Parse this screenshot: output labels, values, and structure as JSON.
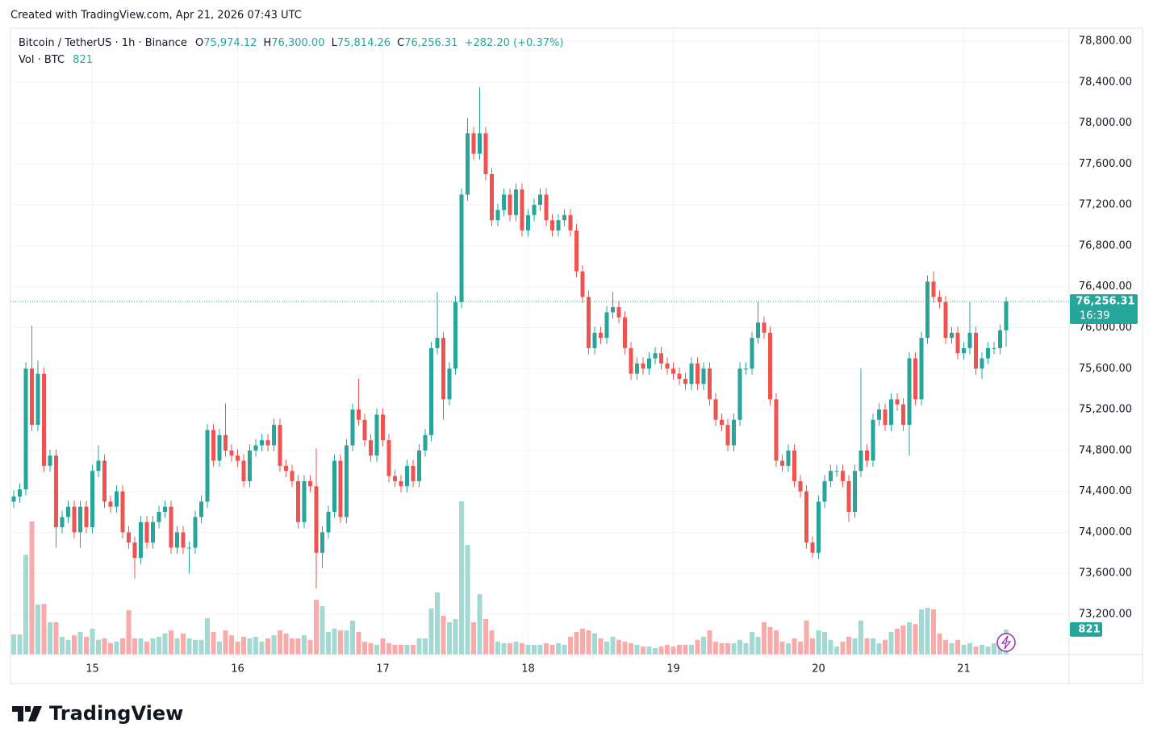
{
  "created": "Created with TradingView.com, Apr 21, 2026 07:43 UTC",
  "footer": "TradingView",
  "chart_data": {
    "type": "candlestick",
    "legend": {
      "symbol": "Bitcoin / TetherUS · 1h · Binance",
      "o": "O",
      "open": "75,974.12",
      "h": "H",
      "high": "76,300.00",
      "l": "L",
      "low": "75,814.26",
      "c": "C",
      "close": "76,256.31",
      "change": "+282.20 (+0.37%)"
    },
    "categories": [
      null,
      null,
      null,
      null,
      null,
      null,
      null,
      null,
      null,
      null,
      null,
      null,
      null,
      "15",
      null,
      null,
      null,
      null,
      null,
      null,
      null,
      null,
      null,
      null,
      null,
      null,
      null,
      null,
      null,
      null,
      null,
      null,
      null,
      null,
      null,
      null,
      null,
      "16",
      null,
      null,
      null,
      null,
      null,
      null,
      null,
      null,
      null,
      null,
      null,
      null,
      null,
      null,
      null,
      null,
      null,
      null,
      null,
      null,
      null,
      null,
      null,
      "17",
      null,
      null,
      null,
      null,
      null,
      null,
      null,
      null,
      null,
      null,
      null,
      null,
      null,
      null,
      null,
      null,
      null,
      null,
      null,
      null,
      null,
      null,
      null,
      "18",
      null,
      null,
      null,
      null,
      null,
      null,
      null,
      null,
      null,
      null,
      null,
      null,
      null,
      null,
      null,
      null,
      null,
      null,
      null,
      null,
      null,
      null,
      null,
      "19",
      null,
      null,
      null,
      null,
      null,
      null,
      null,
      null,
      null,
      null,
      null,
      null,
      null,
      null,
      null,
      null,
      null,
      null,
      null,
      null,
      null,
      null,
      null,
      "20",
      null,
      null,
      null,
      null,
      null,
      null,
      null,
      null,
      null,
      null,
      null,
      null,
      null,
      null,
      null,
      null,
      null,
      null,
      null,
      null,
      null,
      null,
      null,
      "21",
      null,
      null,
      null,
      null,
      null,
      null,
      null
    ],
    "series": [
      {
        "up_color": "#26a69a",
        "down_color": "#ef5350",
        "open": [
          74300,
          74350,
          74420,
          75600,
          75050,
          75550,
          74650,
          74750,
          74050,
          74150,
          74250,
          74000,
          74250,
          74050,
          74600,
          74700,
          74300,
          74250,
          74400,
          74000,
          73900,
          73750,
          74100,
          73900,
          74100,
          74200,
          74250,
          73850,
          74000,
          73850,
          73850,
          74150,
          74300,
          75000,
          74700,
          74950,
          74800,
          74750,
          74700,
          74500,
          74800,
          74850,
          74900,
          74850,
          75050,
          74650,
          74600,
          74500,
          74100,
          74500,
          74450,
          73800,
          74000,
          74200,
          74700,
          74150,
          74850,
          75200,
          75100,
          74900,
          74750,
          75150,
          74900,
          74550,
          74500,
          74450,
          74650,
          74500,
          74800,
          74950,
          75800,
          75900,
          75300,
          75600,
          76250,
          77300,
          77900,
          77700,
          77900,
          77500,
          77050,
          77150,
          77300,
          77100,
          77350,
          76950,
          77100,
          77200,
          77300,
          77050,
          76950,
          77050,
          77100,
          76950,
          76550,
          76300,
          75800,
          75950,
          75900,
          76150,
          76200,
          76100,
          75800,
          75550,
          75650,
          75600,
          75700,
          75750,
          75650,
          75600,
          75550,
          75500,
          75450,
          75650,
          75450,
          75600,
          75300,
          75100,
          75050,
          74850,
          75100,
          75600,
          75600,
          75900,
          76050,
          75950,
          75300,
          74700,
          74650,
          74800,
          74500,
          74400,
          73900,
          73800,
          74300,
          74500,
          74600,
          74600,
          74500,
          74200,
          74600,
          74800,
          74700,
          75100,
          75200,
          75050,
          75300,
          75250,
          75050,
          75700,
          75300,
          75900,
          76450,
          76300,
          76250,
          75900,
          75950,
          75750,
          75800,
          75950,
          75600,
          75700,
          75800,
          75800,
          75974.12
        ],
        "high": [
          74410,
          74480,
          75660,
          76020,
          75680,
          75610,
          74810,
          74810,
          74210,
          74310,
          74310,
          74310,
          74310,
          74660,
          74850,
          74760,
          74360,
          74460,
          74460,
          74060,
          73960,
          74160,
          74160,
          74160,
          74260,
          74310,
          74310,
          74060,
          74060,
          73910,
          74210,
          74360,
          75060,
          75060,
          75010,
          75260,
          74860,
          74810,
          74760,
          74860,
          74910,
          74960,
          74960,
          75110,
          75110,
          74710,
          74660,
          74560,
          74560,
          74560,
          74820,
          74060,
          74260,
          74760,
          74760,
          74910,
          75260,
          75500,
          75160,
          74960,
          75210,
          75210,
          74960,
          74610,
          74560,
          74710,
          74710,
          74860,
          75010,
          75860,
          76350,
          75960,
          75660,
          76310,
          77360,
          78050,
          77960,
          78350,
          77960,
          77560,
          77210,
          77360,
          77360,
          77410,
          77410,
          77160,
          77260,
          77360,
          77360,
          77110,
          77110,
          77160,
          77160,
          77010,
          76610,
          76360,
          76010,
          76010,
          76210,
          76350,
          76260,
          76160,
          75860,
          75710,
          75710,
          75760,
          75810,
          75810,
          75710,
          75660,
          75610,
          75560,
          75710,
          75710,
          75660,
          75660,
          75360,
          75160,
          75110,
          75160,
          75660,
          75660,
          75960,
          76250,
          76110,
          76010,
          75360,
          74760,
          74860,
          74860,
          74560,
          74460,
          73960,
          74360,
          74560,
          74660,
          74660,
          74660,
          74560,
          74660,
          75600,
          74860,
          75160,
          75260,
          75260,
          75360,
          75360,
          75310,
          75760,
          75760,
          75960,
          76510,
          76550,
          76360,
          76310,
          76010,
          76010,
          75860,
          76250,
          76010,
          75760,
          75860,
          75860,
          76030,
          76300
        ],
        "low": [
          74240,
          74290,
          74360,
          74990,
          74990,
          74590,
          74590,
          73850,
          73990,
          74090,
          73940,
          73850,
          73990,
          73990,
          74540,
          74240,
          74190,
          74190,
          73940,
          73840,
          73550,
          73690,
          73840,
          73840,
          74040,
          74140,
          73790,
          73790,
          73790,
          73600,
          73790,
          74090,
          74240,
          74640,
          74640,
          74740,
          74690,
          74640,
          74440,
          74440,
          74740,
          74790,
          74790,
          74790,
          74590,
          74540,
          74440,
          74040,
          74040,
          74390,
          73450,
          73650,
          73940,
          74140,
          74090,
          74090,
          74790,
          75040,
          74840,
          74690,
          74690,
          74840,
          74490,
          74440,
          74390,
          74390,
          74440,
          74440,
          74740,
          74890,
          75740,
          75100,
          75240,
          75540,
          76190,
          77240,
          77640,
          77640,
          77440,
          76990,
          76990,
          77090,
          77040,
          77040,
          76890,
          76890,
          77040,
          77140,
          76990,
          76890,
          76890,
          76990,
          76890,
          76490,
          76240,
          75740,
          75740,
          75840,
          75840,
          76090,
          76040,
          75740,
          75490,
          75490,
          75540,
          75540,
          75640,
          75590,
          75540,
          75490,
          75440,
          75390,
          75390,
          75390,
          75390,
          75240,
          75040,
          74990,
          74790,
          74790,
          75040,
          75540,
          75540,
          75840,
          75890,
          75240,
          74640,
          74590,
          74590,
          74440,
          74340,
          73840,
          73750,
          73740,
          74240,
          74440,
          74540,
          74440,
          74100,
          74140,
          74540,
          74640,
          74640,
          75040,
          74990,
          74990,
          75190,
          74990,
          74750,
          75240,
          75240,
          75840,
          76240,
          76190,
          75840,
          75840,
          75690,
          75690,
          75740,
          75540,
          75500,
          75640,
          75740,
          75740,
          75814.26
        ],
        "close": [
          74350,
          74420,
          75600,
          75050,
          75550,
          74650,
          74750,
          74050,
          74150,
          74250,
          74000,
          74250,
          74050,
          74600,
          74700,
          74300,
          74250,
          74400,
          74000,
          73900,
          73750,
          74100,
          73900,
          74100,
          74200,
          74250,
          73850,
          74000,
          73850,
          73850,
          74150,
          74300,
          75000,
          74700,
          74950,
          74800,
          74750,
          74700,
          74500,
          74800,
          74850,
          74900,
          74850,
          75050,
          74650,
          74600,
          74500,
          74100,
          74500,
          74450,
          73800,
          74000,
          74200,
          74700,
          74150,
          74850,
          75200,
          75100,
          74900,
          74750,
          75150,
          74900,
          74550,
          74500,
          74450,
          74650,
          74500,
          74800,
          74950,
          75800,
          75900,
          75300,
          75600,
          76250,
          77300,
          77900,
          77700,
          77900,
          77500,
          77050,
          77150,
          77300,
          77100,
          77350,
          76950,
          77100,
          77200,
          77300,
          77050,
          76950,
          77050,
          77100,
          76950,
          76550,
          76300,
          75800,
          75950,
          75900,
          76150,
          76200,
          76100,
          75800,
          75550,
          75650,
          75600,
          75700,
          75750,
          75650,
          75600,
          75550,
          75500,
          75450,
          75650,
          75450,
          75600,
          75300,
          75100,
          75050,
          74850,
          75100,
          75600,
          75600,
          75900,
          76050,
          75950,
          75300,
          74700,
          74650,
          74800,
          74500,
          74400,
          73900,
          73800,
          74300,
          74500,
          74600,
          74600,
          74500,
          74200,
          74600,
          74800,
          74700,
          75100,
          75200,
          75050,
          75300,
          75250,
          75050,
          75700,
          75300,
          75900,
          76450,
          76300,
          76250,
          75900,
          75950,
          75750,
          75800,
          75950,
          75600,
          75700,
          75800,
          75800,
          75974.12,
          76256.31
        ]
      }
    ],
    "countdown": "16:39",
    "volume": {
      "name": "Vol · BTC",
      "value_label": "821",
      "up_color": "#a3d9d3",
      "down_color": "#f8abaa",
      "ylim": [
        0,
        5600
      ],
      "values": [
        660,
        660,
        3270,
        4360,
        1640,
        1660,
        1060,
        1060,
        580,
        480,
        630,
        740,
        580,
        850,
        480,
        530,
        370,
        420,
        530,
        1450,
        530,
        530,
        420,
        530,
        580,
        690,
        790,
        530,
        690,
        530,
        480,
        480,
        1190,
        740,
        420,
        790,
        630,
        420,
        580,
        530,
        580,
        420,
        530,
        630,
        790,
        690,
        530,
        530,
        630,
        480,
        1800,
        1580,
        740,
        850,
        790,
        790,
        1110,
        740,
        420,
        370,
        320,
        530,
        370,
        320,
        320,
        320,
        320,
        530,
        530,
        1510,
        2040,
        1270,
        1060,
        1160,
        5020,
        3590,
        1060,
        1980,
        1160,
        790,
        420,
        370,
        370,
        420,
        370,
        320,
        320,
        320,
        370,
        320,
        370,
        320,
        580,
        740,
        850,
        790,
        690,
        530,
        420,
        580,
        480,
        420,
        370,
        320,
        260,
        260,
        210,
        260,
        320,
        260,
        320,
        320,
        320,
        480,
        580,
        790,
        420,
        370,
        370,
        370,
        480,
        370,
        740,
        580,
        1060,
        900,
        790,
        420,
        370,
        530,
        420,
        1110,
        530,
        790,
        740,
        480,
        260,
        420,
        580,
        530,
        1110,
        530,
        530,
        370,
        480,
        740,
        850,
        950,
        1060,
        1000,
        1480,
        1530,
        1480,
        690,
        480,
        370,
        480,
        320,
        370,
        260,
        320,
        260,
        370,
        260,
        821
      ]
    },
    "ylim": [
      72806,
      78926
    ],
    "yticks": [
      {
        "value": 73200,
        "label": "73,200.00"
      },
      {
        "value": 73600,
        "label": "73,600.00"
      },
      {
        "value": 74000,
        "label": "74,000.00"
      },
      {
        "value": 74400,
        "label": "74,400.00"
      },
      {
        "value": 74800,
        "label": "74,800.00"
      },
      {
        "value": 75200,
        "label": "75,200.00"
      },
      {
        "value": 75600,
        "label": "75,600.00"
      },
      {
        "value": 76000,
        "label": "76,000.00"
      },
      {
        "value": 76400,
        "label": "76,400.00"
      },
      {
        "value": 76800,
        "label": "76,800.00"
      },
      {
        "value": 77200,
        "label": "77,200.00"
      },
      {
        "value": 77600,
        "label": "77,600.00"
      },
      {
        "value": 78000,
        "label": "78,000.00"
      },
      {
        "value": 78400,
        "label": "78,400.00"
      },
      {
        "value": 78800,
        "label": "78,800.00"
      }
    ],
    "grid": true
  }
}
